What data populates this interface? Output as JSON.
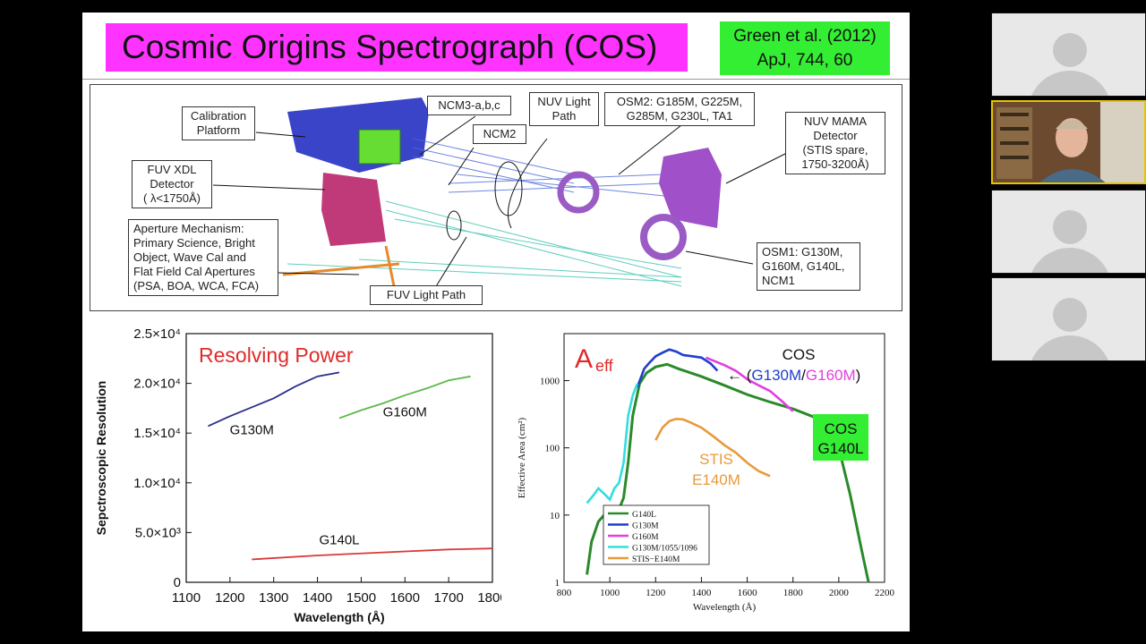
{
  "slide": {
    "title": "Cosmic Origins Spectrograph (COS)",
    "reference": [
      "Green et al. (2012)",
      "ApJ, 744, 60"
    ]
  },
  "diagram": {
    "callouts": {
      "calibration_platform": [
        "Calibration",
        "Platform"
      ],
      "fuv_xdl": [
        "FUV XDL",
        "Detector",
        "( λ<1750Å)"
      ],
      "ncm3": "NCM3-a,b,c",
      "ncm2": "NCM2",
      "nuv_light_path": [
        "NUV Light",
        "Path"
      ],
      "osm2": [
        "OSM2: G185M, G225M,",
        "G285M, G230L, TA1"
      ],
      "nuv_mama": [
        "NUV MAMA",
        "Detector",
        "(STIS spare,",
        "1750-3200Å)"
      ],
      "aperture": [
        "Aperture Mechanism:",
        "Primary Science, Bright",
        "Object, Wave Cal and",
        "Flat Field Cal Apertures",
        "(PSA, BOA, WCA, FCA)"
      ],
      "fuv_light_path": "FUV Light Path",
      "osm1": [
        "OSM1: G130M,",
        "G160M, G140L,",
        "NCM1"
      ]
    },
    "colors": {
      "bench": "#3a44c8",
      "fuv_detector": "#c03a7a",
      "green_block": "#66dd33",
      "nuv_detector": "#a050c8",
      "osm": "#9a5cc4",
      "rays": "#4a6ad8",
      "rays_fuv": "#39c2b0",
      "struct": "#e88a2a"
    }
  },
  "chart_data": [
    {
      "type": "line",
      "title": "Resolving Power",
      "xlabel": "Wavelength (Å)",
      "ylabel": "Sepctroscopic Resolution",
      "xlim": [
        1100,
        1800
      ],
      "ylim": [
        0,
        25000
      ],
      "xticks": [
        "1100",
        "1200",
        "1300",
        "1400",
        "1500",
        "1600",
        "1700",
        "1800"
      ],
      "yticks": [
        {
          "v": 0,
          "label": "0"
        },
        {
          "v": 5000,
          "label": "5.0×10³"
        },
        {
          "v": 10000,
          "label": "1.0×10⁴"
        },
        {
          "v": 15000,
          "label": "1.5×10⁴"
        },
        {
          "v": 20000,
          "label": "2.0×10⁴"
        },
        {
          "v": 25000,
          "label": "2.5×10⁴"
        }
      ],
      "series": [
        {
          "name": "G130M",
          "color": "#2a2f8a",
          "x": [
            1150,
            1200,
            1250,
            1300,
            1350,
            1400,
            1450
          ],
          "y": [
            15700,
            16700,
            17600,
            18500,
            19700,
            20700,
            21100
          ]
        },
        {
          "name": "G160M",
          "color": "#5cb84a",
          "x": [
            1450,
            1500,
            1550,
            1600,
            1650,
            1700,
            1750
          ],
          "y": [
            16500,
            17300,
            18000,
            18800,
            19500,
            20300,
            20700
          ]
        },
        {
          "name": "G140L",
          "color": "#d83a3a",
          "x": [
            1250,
            1400,
            1550,
            1700,
            1800
          ],
          "y": [
            2300,
            2700,
            3000,
            3300,
            3400
          ]
        }
      ]
    },
    {
      "type": "line",
      "title": "A",
      "title_sub": "eff",
      "xlabel": "Wavelength (Å)",
      "ylabel": "Effective Area (cm²)",
      "yscale": "log",
      "xlim": [
        800,
        2200
      ],
      "ylim": [
        1,
        5000
      ],
      "xticks": [
        "800",
        "1000",
        "1200",
        "1400",
        "1600",
        "1800",
        "2000",
        "2200"
      ],
      "yticks": [
        {
          "v": 1,
          "label": "1"
        },
        {
          "v": 10,
          "label": "10"
        },
        {
          "v": 100,
          "label": "100"
        },
        {
          "v": 1000,
          "label": "1000"
        }
      ],
      "legend_position": "bottom-left",
      "series": [
        {
          "name": "G140L",
          "color": "#2a8a2a",
          "x": [
            900,
            920,
            950,
            975,
            1000,
            1030,
            1060,
            1080,
            1100,
            1130,
            1160,
            1200,
            1250,
            1300,
            1400,
            1500,
            1600,
            1700,
            1800,
            1900,
            1950,
            2000,
            2050,
            2100,
            2130
          ],
          "y": [
            1.3,
            4,
            8,
            10,
            7,
            10,
            18,
            60,
            300,
            900,
            1300,
            1600,
            1750,
            1500,
            1150,
            850,
            620,
            480,
            380,
            280,
            200,
            100,
            20,
            3,
            1
          ]
        },
        {
          "name": "G130M",
          "color": "#1f3fcc",
          "x": [
            1120,
            1150,
            1170,
            1200,
            1230,
            1260,
            1290,
            1320,
            1360,
            1400,
            1440,
            1470
          ],
          "y": [
            800,
            1500,
            1800,
            2300,
            2600,
            2900,
            2700,
            2400,
            2300,
            2200,
            1800,
            1400
          ]
        },
        {
          "name": "G160M",
          "color": "#e040e0",
          "x": [
            1420,
            1450,
            1500,
            1550,
            1600,
            1650,
            1700,
            1750,
            1800
          ],
          "y": [
            2200,
            2000,
            1700,
            1400,
            1050,
            850,
            700,
            500,
            350
          ]
        },
        {
          "name": "G130M/1055/1096",
          "color": "#33dddd",
          "x": [
            900,
            930,
            950,
            980,
            1000,
            1020,
            1040,
            1060,
            1080,
            1100,
            1120
          ],
          "y": [
            15,
            20,
            25,
            20,
            17,
            25,
            30,
            60,
            300,
            600,
            900
          ]
        },
        {
          "name": "STIS−E140M",
          "color": "#e89a3a",
          "x": [
            1200,
            1230,
            1260,
            1290,
            1320,
            1350,
            1400,
            1450,
            1500,
            1550,
            1600,
            1650,
            1700
          ],
          "y": [
            130,
            200,
            250,
            270,
            265,
            240,
            200,
            150,
            110,
            85,
            60,
            45,
            38
          ]
        }
      ],
      "annotations": {
        "cos_label": "COS",
        "arrow": "←",
        "paren_open": "(",
        "g130m": "G130M",
        "slash": "/",
        "g160m": "G160M",
        "paren_close": ")",
        "stis": [
          "STIS",
          "E140M"
        ],
        "cos_g140l": [
          "COS",
          "G140L"
        ]
      }
    }
  ],
  "resolving_labels": {
    "g130m": "G130M",
    "g160m": "G160M",
    "g140l": "G140L"
  },
  "participants": [
    {
      "name": "participant-1",
      "video": false
    },
    {
      "name": "participant-2",
      "video": true
    },
    {
      "name": "participant-3",
      "video": false
    },
    {
      "name": "participant-4",
      "video": false
    }
  ]
}
